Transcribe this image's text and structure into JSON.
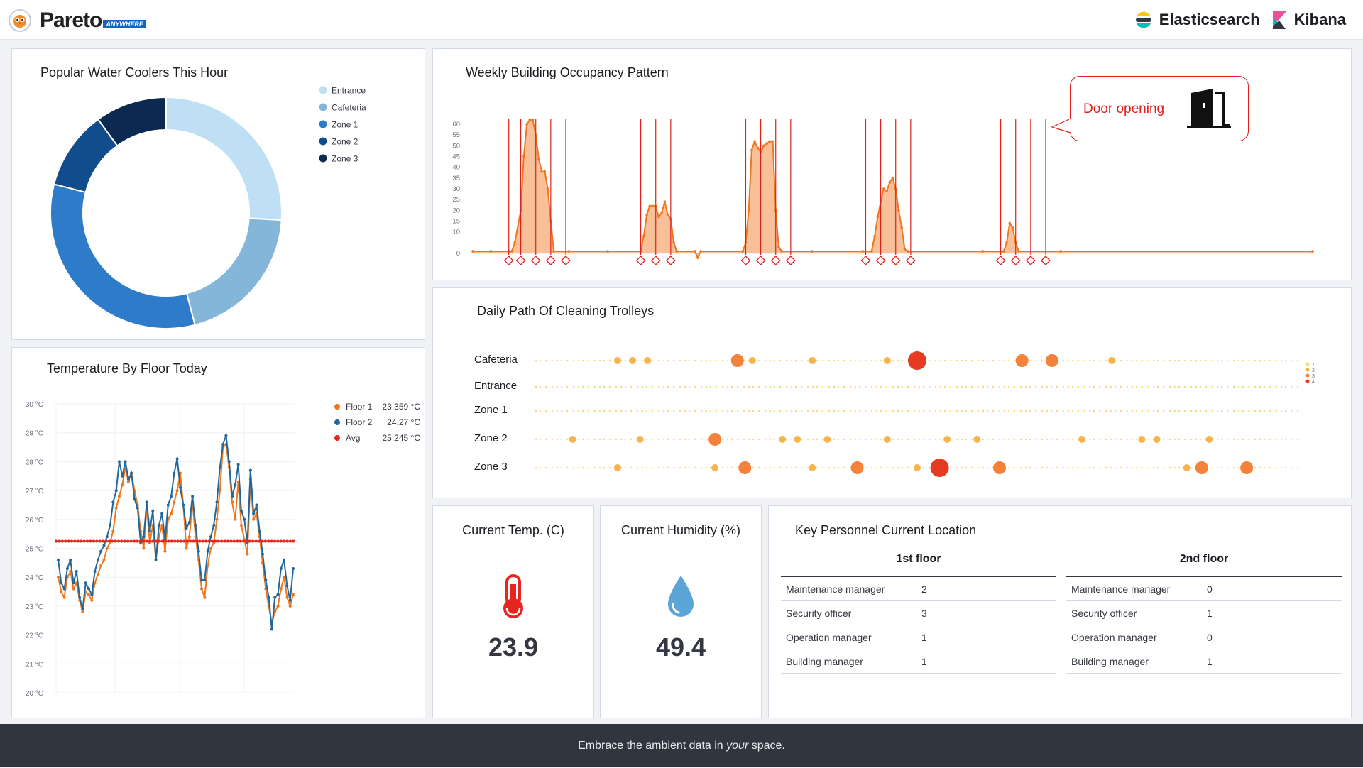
{
  "header": {
    "brand_name": "Pareto",
    "brand_tag": "ANYWHERE",
    "vendors": [
      {
        "name": "Elasticsearch",
        "icon": "elasticsearch-logo-icon"
      },
      {
        "name": "Kibana",
        "icon": "kibana-logo-icon"
      }
    ]
  },
  "panels": {
    "water_coolers": {
      "title": "Popular Water Coolers This Hour"
    },
    "temperature": {
      "title": "Temperature By Floor Today"
    },
    "occupancy": {
      "title": "Weekly Building Occupancy Pattern",
      "callout": "Door opening"
    },
    "trolleys": {
      "title": "Daily Path Of Cleaning Trolleys"
    },
    "current_temp": {
      "title": "Current Temp. (C)",
      "value": "23.9",
      "icon": "thermometer-icon"
    },
    "current_humidity": {
      "title": "Current Humidity (%)",
      "value": "49.4",
      "icon": "water-drop-icon"
    },
    "personnel": {
      "title": "Key Personnel Current Location",
      "floors": [
        {
          "name": "1st floor",
          "rows": [
            {
              "role": "Maintenance manager",
              "count": "2"
            },
            {
              "role": "Security officer",
              "count": "3"
            },
            {
              "role": "Operation manager",
              "count": "1"
            },
            {
              "role": "Building manager",
              "count": "1"
            }
          ]
        },
        {
          "name": "2nd floor",
          "rows": [
            {
              "role": "Maintenance manager",
              "count": "0"
            },
            {
              "role": "Security officer",
              "count": "1"
            },
            {
              "role": "Operation manager",
              "count": "0"
            },
            {
              "role": "Building manager",
              "count": "1"
            }
          ]
        }
      ]
    }
  },
  "footer": {
    "pre": "Embrace the ambient data in ",
    "em": "your",
    "post": " space."
  },
  "chart_data": [
    {
      "id": "water_coolers",
      "type": "pie",
      "donut": true,
      "title": "Popular Water Coolers This Hour",
      "categories": [
        "Entrance",
        "Cafeteria",
        "Zone 1",
        "Zone 2",
        "Zone 3"
      ],
      "values": [
        26,
        20,
        33,
        11,
        10
      ],
      "colors": [
        "#bfdff5",
        "#84b6da",
        "#2d7bc9",
        "#114c8d",
        "#0c2a50"
      ],
      "legend": "top-right"
    },
    {
      "id": "temperature",
      "type": "line",
      "title": "Temperature By Floor Today",
      "ylim": [
        20,
        30
      ],
      "ytick_labels": [
        "20 °C",
        "21 °C",
        "22 °C",
        "23 °C",
        "24 °C",
        "25 °C",
        "26 °C",
        "27 °C",
        "28 °C",
        "29 °C",
        "30 °C"
      ],
      "legend": "top-right",
      "grid": true,
      "series": [
        {
          "name": "Floor 1",
          "legend_value": "23.359 °C",
          "color": "#f0761c",
          "values": [
            24.0,
            23.5,
            23.3,
            24.0,
            24.2,
            23.6,
            23.8,
            23.2,
            22.8,
            23.5,
            23.4,
            23.2,
            23.8,
            24.1,
            24.4,
            24.6,
            25.0,
            25.2,
            25.6,
            26.4,
            26.8,
            27.2,
            27.8,
            27.3,
            27.6,
            27.0,
            26.5,
            25.6,
            25.0,
            26.4,
            25.2,
            25.8,
            24.6,
            25.4,
            25.8,
            24.9,
            26.0,
            26.2,
            26.6,
            27.0,
            27.6,
            26.5,
            25.0,
            25.4,
            26.6,
            25.4,
            24.6,
            23.6,
            23.3,
            24.4,
            25.0,
            25.2,
            26.0,
            27.0,
            28.5,
            28.6,
            27.8,
            26.6,
            26.0,
            27.3,
            25.8,
            25.3,
            24.8,
            27.4,
            26.0,
            26.2,
            25.4,
            24.5,
            23.6,
            23.0,
            22.4,
            22.8,
            23.0,
            23.6,
            24.0,
            23.3,
            23.0,
            23.4
          ]
        },
        {
          "name": "Floor 2",
          "legend_value": "24.27 °C",
          "color": "#21679b",
          "values": [
            24.6,
            23.8,
            23.6,
            24.3,
            24.6,
            23.8,
            24.2,
            23.3,
            22.9,
            23.8,
            23.6,
            23.4,
            24.2,
            24.6,
            24.9,
            25.1,
            25.4,
            25.8,
            26.6,
            27.0,
            28.0,
            27.5,
            28.0,
            27.4,
            27.6,
            26.7,
            26.4,
            25.2,
            25.4,
            26.6,
            25.6,
            26.3,
            24.6,
            25.8,
            26.2,
            25.3,
            26.5,
            26.8,
            27.6,
            28.1,
            27.1,
            26.5,
            25.7,
            25.9,
            26.8,
            25.8,
            24.9,
            23.9,
            23.9,
            24.9,
            25.4,
            25.8,
            26.6,
            27.8,
            28.6,
            28.9,
            28.0,
            26.8,
            27.2,
            27.9,
            26.3,
            26.0,
            25.2,
            27.7,
            26.2,
            26.5,
            25.6,
            24.8,
            23.9,
            23.3,
            22.2,
            23.3,
            23.4,
            24.3,
            24.6,
            23.7,
            23.2,
            24.3
          ]
        },
        {
          "name": "Avg",
          "legend_value": "25.245 °C",
          "color": "#e7251f",
          "constant": 25.245
        }
      ]
    },
    {
      "id": "occupancy",
      "type": "area",
      "title": "Weekly Building Occupancy Pattern",
      "ylim": [
        0,
        60
      ],
      "yticks": [
        0,
        10,
        15,
        20,
        25,
        30,
        35,
        40,
        45,
        50,
        55,
        60
      ],
      "color": "#f0761c",
      "x_end": 280,
      "series": [
        {
          "name": "",
          "points": [
            [
              0,
              1
            ],
            [
              6,
              1
            ],
            [
              12,
              1
            ],
            [
              13,
              1
            ],
            [
              14,
              5
            ],
            [
              16,
              20
            ],
            [
              17,
              45
            ],
            [
              18,
              60
            ],
            [
              19,
              62
            ],
            [
              20,
              62
            ],
            [
              21,
              55
            ],
            [
              22,
              44
            ],
            [
              23,
              38
            ],
            [
              24,
              38
            ],
            [
              25,
              30
            ],
            [
              26,
              15
            ],
            [
              27,
              1
            ],
            [
              32,
              1
            ],
            [
              45,
              1
            ],
            [
              56,
              1
            ],
            [
              57,
              8
            ],
            [
              58,
              18
            ],
            [
              59,
              22
            ],
            [
              60,
              22
            ],
            [
              61,
              22
            ],
            [
              62,
              17
            ],
            [
              63,
              19
            ],
            [
              64,
              24
            ],
            [
              65,
              18
            ],
            [
              66,
              16
            ],
            [
              67,
              5
            ],
            [
              68,
              1
            ],
            [
              74,
              1
            ],
            [
              75,
              -2
            ],
            [
              76,
              1
            ],
            [
              90,
              1
            ],
            [
              91,
              5
            ],
            [
              92,
              20
            ],
            [
              93,
              48
            ],
            [
              94,
              52
            ],
            [
              95,
              49
            ],
            [
              96,
              47
            ],
            [
              97,
              50
            ],
            [
              98,
              51
            ],
            [
              99,
              52
            ],
            [
              100,
              52
            ],
            [
              101,
              20
            ],
            [
              102,
              3
            ],
            [
              103,
              1
            ],
            [
              113,
              1
            ],
            [
              130,
              1
            ],
            [
              133,
              1
            ],
            [
              134,
              8
            ],
            [
              135,
              17
            ],
            [
              136,
              24
            ],
            [
              137,
              30
            ],
            [
              138,
              29
            ],
            [
              139,
              33
            ],
            [
              140,
              35
            ],
            [
              141,
              30
            ],
            [
              142,
              20
            ],
            [
              143,
              12
            ],
            [
              144,
              2
            ],
            [
              145,
              1
            ],
            [
              170,
              1
            ],
            [
              177,
              1
            ],
            [
              178,
              5
            ],
            [
              179,
              14
            ],
            [
              180,
              12
            ],
            [
              181,
              5
            ],
            [
              182,
              1
            ],
            [
              196,
              1
            ],
            [
              280,
              1
            ]
          ]
        }
      ],
      "annotations": {
        "label": "Door opening",
        "marker_x": [
          12,
          16,
          21,
          26,
          31,
          56,
          61,
          66,
          91,
          96,
          101,
          106,
          131,
          136,
          141,
          146,
          176,
          181,
          186,
          191
        ]
      }
    },
    {
      "id": "trolleys",
      "type": "scatter",
      "title": "Daily Path Of Cleaning Trolleys",
      "categories": [
        "Cafeteria",
        "Entrance",
        "Zone 1",
        "Zone 2",
        "Zone 3"
      ],
      "legend_levels": [
        "1",
        "2",
        "3",
        "4"
      ],
      "level_colors": [
        "#fcd57e",
        "#f8b34a",
        "#f4823b",
        "#e63b21"
      ],
      "points": [
        {
          "row": "Cafeteria",
          "x": 9,
          "level": 2
        },
        {
          "row": "Cafeteria",
          "x": 11,
          "level": 2
        },
        {
          "row": "Cafeteria",
          "x": 13,
          "level": 2
        },
        {
          "row": "Cafeteria",
          "x": 25,
          "level": 3
        },
        {
          "row": "Cafeteria",
          "x": 27,
          "level": 2
        },
        {
          "row": "Cafeteria",
          "x": 35,
          "level": 2
        },
        {
          "row": "Cafeteria",
          "x": 45,
          "level": 2
        },
        {
          "row": "Cafeteria",
          "x": 49,
          "level": 4
        },
        {
          "row": "Cafeteria",
          "x": 63,
          "level": 3
        },
        {
          "row": "Cafeteria",
          "x": 67,
          "level": 3
        },
        {
          "row": "Cafeteria",
          "x": 75,
          "level": 2
        },
        {
          "row": "Zone 2",
          "x": 3,
          "level": 2
        },
        {
          "row": "Zone 2",
          "x": 12,
          "level": 2
        },
        {
          "row": "Zone 2",
          "x": 22,
          "level": 3
        },
        {
          "row": "Zone 2",
          "x": 31,
          "level": 2
        },
        {
          "row": "Zone 2",
          "x": 33,
          "level": 2
        },
        {
          "row": "Zone 2",
          "x": 37,
          "level": 2
        },
        {
          "row": "Zone 2",
          "x": 45,
          "level": 2
        },
        {
          "row": "Zone 2",
          "x": 53,
          "level": 2
        },
        {
          "row": "Zone 2",
          "x": 57,
          "level": 2
        },
        {
          "row": "Zone 2",
          "x": 71,
          "level": 2
        },
        {
          "row": "Zone 2",
          "x": 79,
          "level": 2
        },
        {
          "row": "Zone 2",
          "x": 81,
          "level": 2
        },
        {
          "row": "Zone 2",
          "x": 88,
          "level": 2
        },
        {
          "row": "Zone 3",
          "x": 9,
          "level": 2
        },
        {
          "row": "Zone 3",
          "x": 22,
          "level": 2
        },
        {
          "row": "Zone 3",
          "x": 26,
          "level": 3
        },
        {
          "row": "Zone 3",
          "x": 35,
          "level": 2
        },
        {
          "row": "Zone 3",
          "x": 41,
          "level": 3
        },
        {
          "row": "Zone 3",
          "x": 49,
          "level": 2
        },
        {
          "row": "Zone 3",
          "x": 52,
          "level": 4
        },
        {
          "row": "Zone 3",
          "x": 60,
          "level": 3
        },
        {
          "row": "Zone 3",
          "x": 85,
          "level": 2
        },
        {
          "row": "Zone 3",
          "x": 87,
          "level": 3
        },
        {
          "row": "Zone 3",
          "x": 93,
          "level": 3
        }
      ]
    }
  ]
}
